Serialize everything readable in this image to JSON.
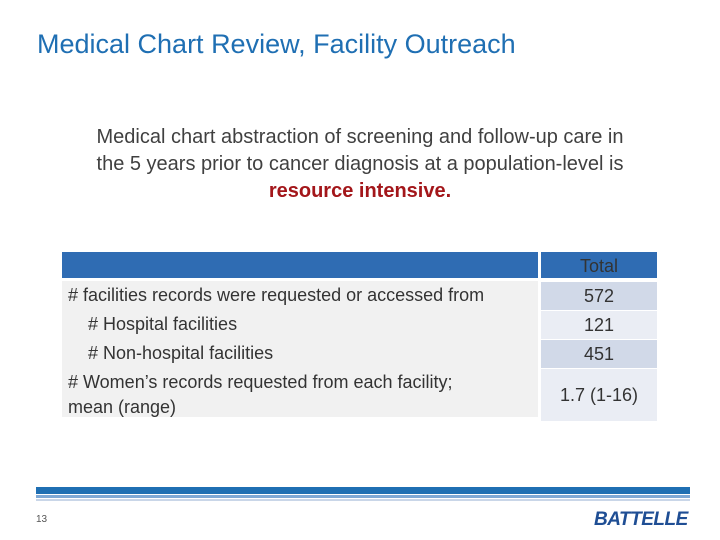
{
  "slide": {
    "title": "Medical Chart Review, Facility Outreach",
    "intro_line1": "Medical chart abstraction of screening and follow-up care in",
    "intro_line2": "the 5 years prior to cancer diagnosis at a population-level is",
    "intro_emphasis": "resource intensive.",
    "slide_number": "13",
    "logo_text": "BATTELLE"
  },
  "table": {
    "total_header": "Total",
    "rows": [
      {
        "label": "# facilities records were requested or accessed from",
        "value": "572"
      },
      {
        "label": "# Hospital facilities",
        "value": "121"
      },
      {
        "label": "# Non-hospital facilities",
        "value": "451"
      },
      {
        "label_line1": "# Women’s records requested from each facility;",
        "label_line2": "mean (range)",
        "value": "1.7 (1-16)"
      }
    ]
  },
  "colors": {
    "title": "#1f6fb3",
    "emphasis": "#a3161a",
    "table_header": "#2f6cb3",
    "footer_stripe": "#1f6fb3",
    "logo": "#1f4e94"
  }
}
